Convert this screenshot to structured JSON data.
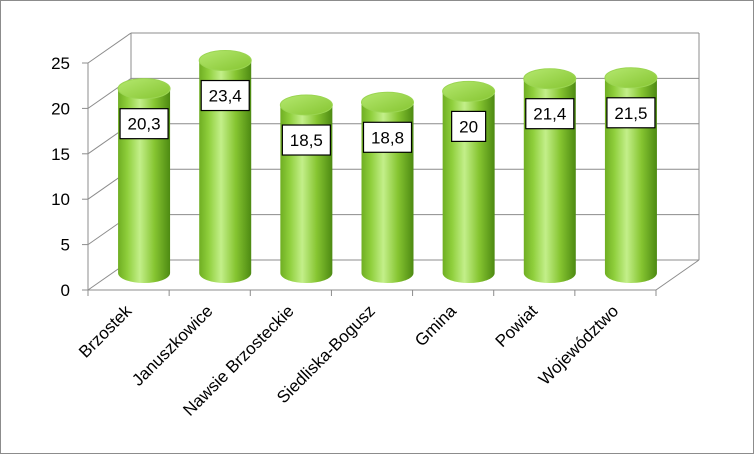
{
  "chart_data": {
    "type": "bar",
    "style": "3d-cylinder",
    "categories": [
      "Brzostek",
      "Januszkowice",
      "Nawsie Brzosteckie",
      "Siedliska-Bogusz",
      "Gmina",
      "Powiat",
      "Województwo"
    ],
    "values": [
      20.3,
      23.4,
      18.5,
      18.8,
      20,
      21.4,
      21.5
    ],
    "data_labels": [
      "20,3",
      "23,4",
      "18,5",
      "18,8",
      "20",
      "21,4",
      "21,5"
    ],
    "y_ticks": [
      "0",
      "5",
      "10",
      "15",
      "20",
      "25"
    ],
    "ylim": [
      0,
      25
    ],
    "grid": true,
    "legend": "none",
    "title": "",
    "xlabel": "",
    "ylabel": "",
    "colors": {
      "bar_light": "#b9ea7c",
      "bar_mid": "#8fcf3c",
      "bar_dark": "#4d8a12",
      "bar_top": "#a3dd55",
      "grid": "#8c8c8c",
      "label_border": "#000000"
    }
  }
}
